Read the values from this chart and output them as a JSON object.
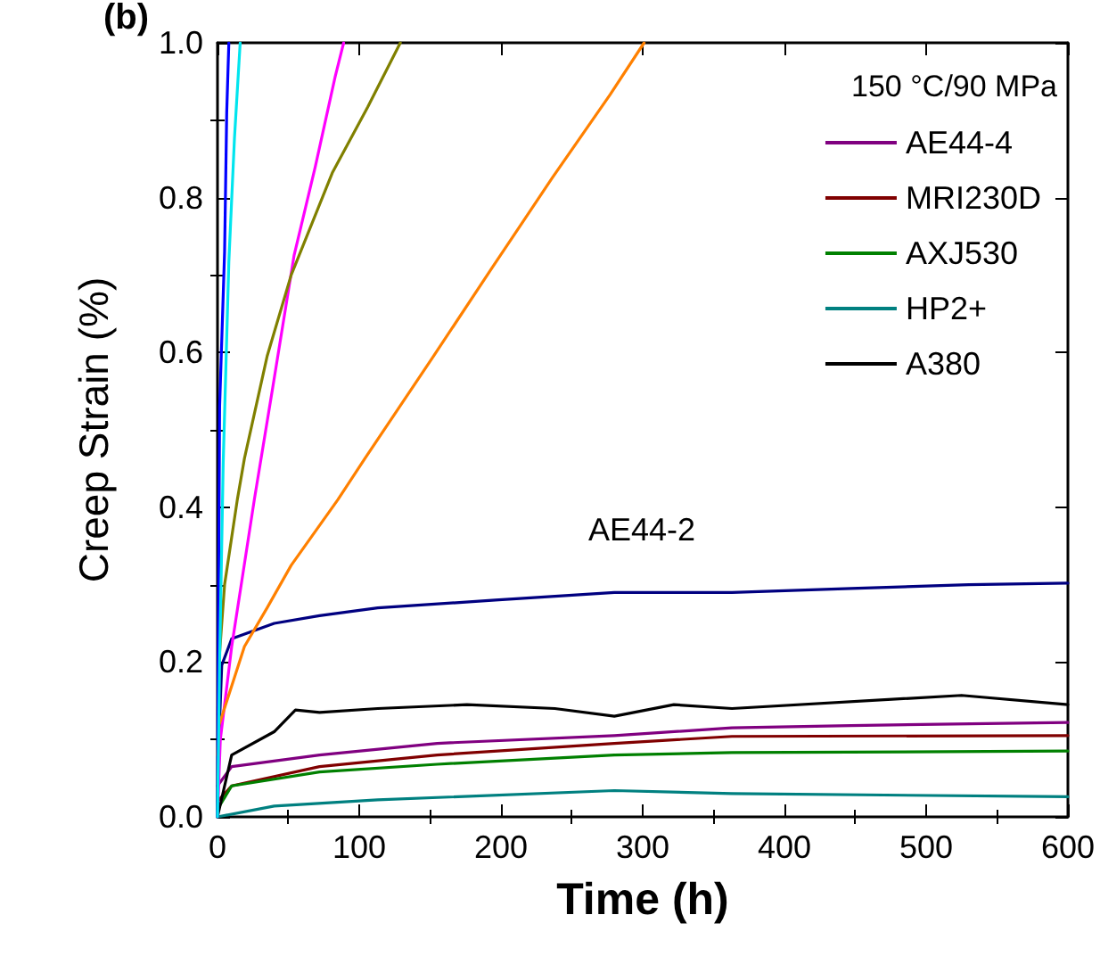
{
  "chart_data": {
    "type": "line",
    "title": "(b)",
    "xlabel": "Time (h)",
    "ylabel": "Creep Strain (%)",
    "legend_title": "150 °C/90 MPa",
    "legend": "top right",
    "grid": false,
    "marker": "none",
    "line_style": "solid",
    "xlim": [
      0,
      600
    ],
    "xticks": [
      0,
      100,
      200,
      300,
      400,
      500,
      600
    ],
    "ylim": [
      0,
      1.0
    ],
    "yticks": [
      {
        "value": 0,
        "label": "0.0"
      },
      0.2,
      0.4,
      0.6,
      0.8,
      {
        "value": 1,
        "label": "1.0"
      }
    ],
    "annotations": [
      "AE44-2"
    ],
    "series": [
      {
        "name": "AE44-4",
        "color": "#800080",
        "x": [
          0,
          10,
          72,
          155,
          280,
          363,
          447,
          600
        ],
        "values": [
          0.04,
          0.065,
          0.08,
          0.095,
          0.105,
          0.115,
          0.118,
          0.122
        ]
      },
      {
        "name": "MRI230D",
        "color": "#800000",
        "x": [
          0,
          10,
          72,
          155,
          280,
          363,
          600
        ],
        "values": [
          0.02,
          0.04,
          0.065,
          0.08,
          0.095,
          0.104,
          0.105
        ]
      },
      {
        "name": "AXJ530",
        "color": "#008000",
        "x": [
          0,
          10,
          72,
          155,
          280,
          363,
          600
        ],
        "values": [
          0.01,
          0.04,
          0.058,
          0.068,
          0.08,
          0.083,
          0.085
        ]
      },
      {
        "name": "HP2+",
        "color": "#008080",
        "x": [
          0,
          40,
          113,
          280,
          363,
          600
        ],
        "values": [
          0,
          0.014,
          0.022,
          0.034,
          0.03,
          0.026
        ]
      },
      {
        "name": "A380",
        "color": "#000000",
        "x": [
          0,
          10,
          40,
          55,
          72,
          113,
          176,
          238,
          280,
          322,
          363,
          525,
          600
        ],
        "values": [
          0,
          0.08,
          0.11,
          0.138,
          0.135,
          0.14,
          0.145,
          0.14,
          0.13,
          0.145,
          0.14,
          0.157,
          0.145
        ]
      },
      {
        "color": "#000080",
        "x": [
          0,
          1,
          3,
          10,
          40,
          72,
          113,
          196,
          280,
          363,
          447,
          530,
          600
        ],
        "values": [
          0,
          0.1,
          0.196,
          0.23,
          0.25,
          0.26,
          0.27,
          0.28,
          0.29,
          0.29,
          0.295,
          0.3,
          0.302
        ]
      },
      {
        "color": "#ff00ff",
        "x": [
          0,
          2,
          10,
          26,
          39,
          54,
          69,
          83,
          89
        ],
        "values": [
          0,
          0.1,
          0.22,
          0.41,
          0.555,
          0.725,
          0.84,
          0.956,
          1.0
        ]
      },
      {
        "color": "#808000",
        "x": [
          0,
          1,
          5,
          14,
          19,
          35,
          52,
          81,
          106,
          129
        ],
        "values": [
          0,
          0.2,
          0.3,
          0.41,
          0.463,
          0.595,
          0.7,
          0.832,
          0.917,
          1.0
        ]
      },
      {
        "color": "#ff8000",
        "x": [
          0,
          1,
          19,
          35,
          52,
          85,
          104,
          152,
          194,
          236,
          277,
          301
        ],
        "values": [
          0.08,
          0.118,
          0.22,
          0.27,
          0.325,
          0.41,
          0.463,
          0.594,
          0.71,
          0.825,
          0.933,
          1.0
        ]
      },
      {
        "color": "#0000ff",
        "x": [
          0,
          0.5,
          1.5,
          5,
          6.5,
          8
        ],
        "values": [
          0,
          0.2,
          0.53,
          0.73,
          0.91,
          1.0
        ]
      },
      {
        "color": "#00e5ee",
        "x": [
          0,
          1.5,
          4,
          8,
          12,
          16
        ],
        "values": [
          0,
          0.2,
          0.456,
          0.717,
          0.878,
          1.0
        ]
      }
    ]
  }
}
